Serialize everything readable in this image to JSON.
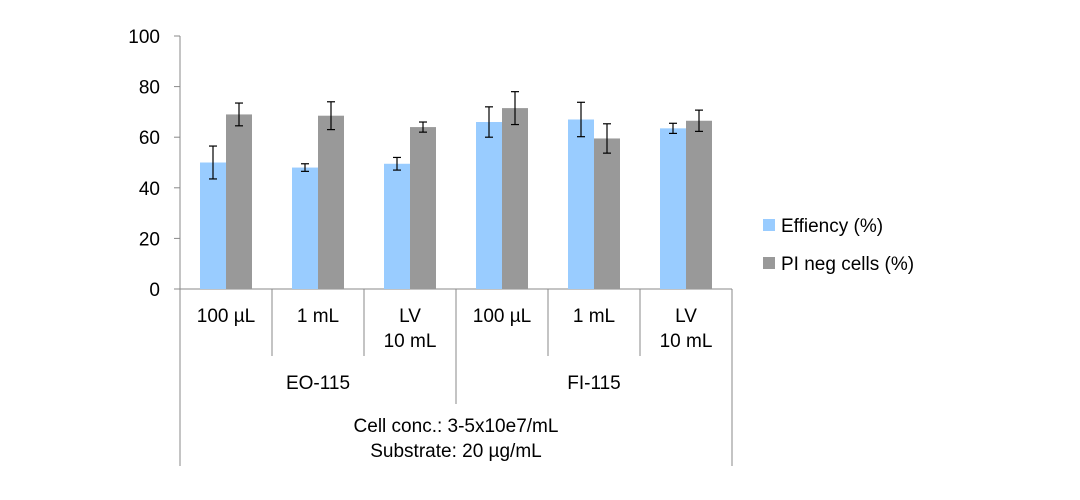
{
  "chart_data": {
    "type": "bar",
    "title": "",
    "xlabel": "",
    "ylabel": "",
    "ylim": [
      0,
      100
    ],
    "yticks": [
      0,
      20,
      40,
      60,
      80,
      100
    ],
    "grid": false,
    "legend_position": "right",
    "categories": [
      {
        "lines": [
          "100 µL"
        ]
      },
      {
        "lines": [
          "1 mL"
        ]
      },
      {
        "lines": [
          "LV",
          "10 mL"
        ]
      },
      {
        "lines": [
          "100 µL"
        ]
      },
      {
        "lines": [
          "1 mL"
        ]
      },
      {
        "lines": [
          "LV",
          "10 mL"
        ]
      }
    ],
    "groups": [
      {
        "label": "EO-115",
        "span": 3
      },
      {
        "label": "FI-115",
        "span": 3
      }
    ],
    "footer": [
      "Cell conc.: 3-5x10e7/mL",
      "Substrate: 20 µg/mL"
    ],
    "series": [
      {
        "name": "Effiency (%)",
        "color": "#99CCFF",
        "values": [
          50.0,
          48.0,
          49.5,
          66.0,
          67.0,
          63.5
        ],
        "errors": [
          6.5,
          1.5,
          2.5,
          6.0,
          6.8,
          2.0
        ]
      },
      {
        "name": "PI neg cells (%)",
        "color": "#999999",
        "values": [
          69.0,
          68.5,
          64.0,
          71.5,
          59.5,
          66.5
        ],
        "errors": [
          4.5,
          5.5,
          2.0,
          6.5,
          5.8,
          4.2
        ]
      }
    ]
  }
}
